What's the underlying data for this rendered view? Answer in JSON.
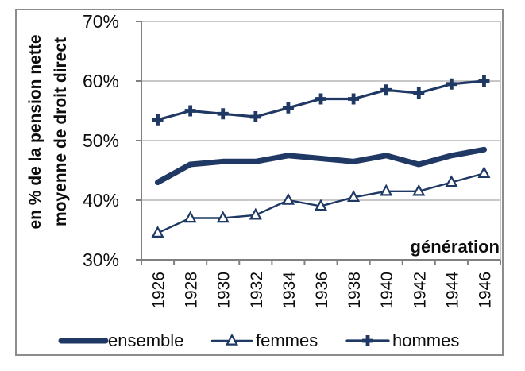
{
  "chart_data": {
    "type": "line",
    "title": "",
    "xlabel": "génération",
    "ylabel": "en % de la pension nette moyenne de droit direct",
    "ylabel_lines": [
      "en % de la pension nette",
      "moyenne de droit direct"
    ],
    "categories": [
      "1926",
      "1928",
      "1930",
      "1932",
      "1934",
      "1936",
      "1938",
      "1940",
      "1942",
      "1944",
      "1946"
    ],
    "series": [
      {
        "name": "ensemble",
        "line": "thick",
        "marker": "none",
        "values": [
          43.0,
          46.0,
          46.5,
          46.5,
          47.5,
          47.0,
          46.5,
          47.5,
          46.0,
          47.5,
          48.5
        ]
      },
      {
        "name": "femmes",
        "line": "thin",
        "marker": "triangle-open",
        "values": [
          34.5,
          37.0,
          37.0,
          37.5,
          40.0,
          39.0,
          40.5,
          41.5,
          41.5,
          43.0,
          44.5
        ]
      },
      {
        "name": "hommes",
        "line": "medium",
        "marker": "plus",
        "values": [
          53.5,
          55.0,
          54.5,
          54.0,
          55.5,
          57.0,
          57.0,
          58.5,
          58.0,
          59.5,
          60.0
        ]
      }
    ],
    "ylim": [
      30,
      70
    ],
    "y_tick_values": [
      70,
      60,
      50,
      40,
      30
    ],
    "y_tick_labels": [
      "70%",
      "60%",
      "50%",
      "40%",
      "30%"
    ],
    "grid": true,
    "legend_position": "bottom"
  },
  "colors": {
    "series": "#1f3864",
    "grid": "#a8a8a8",
    "axis": "#808080",
    "frame": "#8c8c8c",
    "text": "#0d0d0d",
    "background": "#ffffff",
    "marker_fill": "#ffffff"
  }
}
